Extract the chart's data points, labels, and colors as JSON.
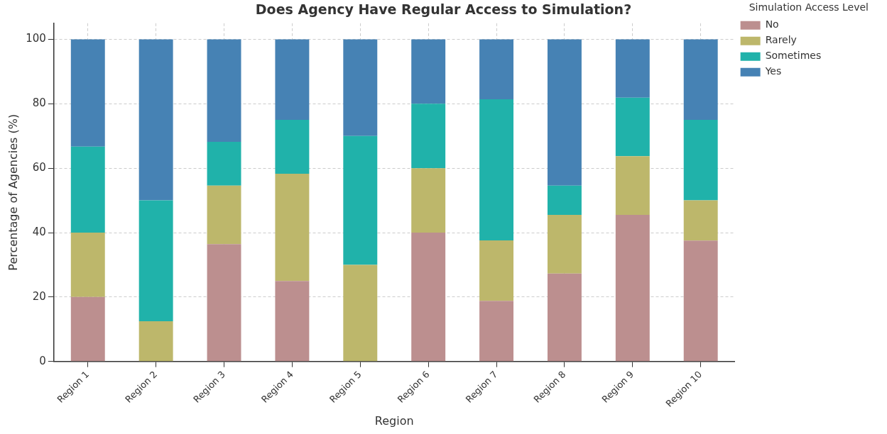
{
  "chart_data": {
    "type": "bar",
    "title": "Does Agency Have Regular Access to Simulation?",
    "xlabel": "Region",
    "ylabel": "Percentage of Agencies (%)",
    "legend_title": "Simulation Access Level",
    "categories": [
      "Region 1",
      "Region 2",
      "Region 3",
      "Region 4",
      "Region 5",
      "Region 6",
      "Region 7",
      "Region 8",
      "Region 9",
      "Region 10"
    ],
    "stacked": true,
    "ylim": [
      0,
      105
    ],
    "yticks": [
      0,
      20,
      40,
      60,
      80,
      100
    ],
    "grid": true,
    "legend": "top right",
    "series": [
      {
        "name": "No",
        "color": "#bc8f8f",
        "values": [
          20,
          0,
          36.4,
          25,
          0,
          40,
          18.8,
          27.3,
          45.5,
          37.5
        ]
      },
      {
        "name": "Rarely",
        "color": "#bdb76b",
        "values": [
          20,
          12.5,
          18.2,
          33.3,
          30,
          20,
          18.8,
          18.2,
          18.2,
          12.5
        ]
      },
      {
        "name": "Sometimes",
        "color": "#20b2aa",
        "values": [
          26.7,
          37.5,
          13.6,
          16.7,
          40,
          20,
          43.8,
          9.1,
          18.2,
          25
        ]
      },
      {
        "name": "Yes",
        "color": "#4682b4",
        "values": [
          33.3,
          50,
          31.8,
          25,
          30,
          20,
          18.6,
          45.4,
          18.1,
          25
        ]
      }
    ]
  }
}
